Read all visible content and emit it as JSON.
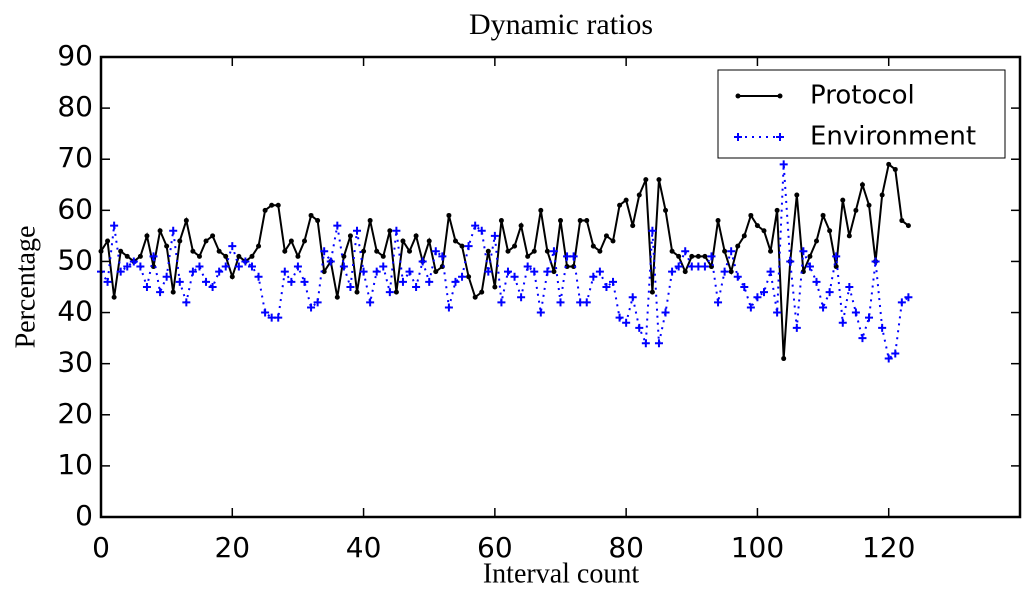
{
  "chart_data": {
    "type": "line",
    "title": "Dynamic ratios",
    "xlabel": "Interval count",
    "ylabel": "Percentage",
    "x": [
      0,
      1,
      2,
      3,
      4,
      5,
      6,
      7,
      8,
      9,
      10,
      11,
      12,
      13,
      14,
      15,
      16,
      17,
      18,
      19,
      20,
      21,
      22,
      23,
      24,
      25,
      26,
      27,
      28,
      29,
      30,
      31,
      32,
      33,
      34,
      35,
      36,
      37,
      38,
      39,
      40,
      41,
      42,
      43,
      44,
      45,
      46,
      47,
      48,
      49,
      50,
      51,
      52,
      53,
      54,
      55,
      56,
      57,
      58,
      59,
      60,
      61,
      62,
      63,
      64,
      65,
      66,
      67,
      68,
      69,
      70,
      71,
      72,
      73,
      74,
      75,
      76,
      77,
      78,
      79,
      80,
      81,
      82,
      83,
      84,
      85,
      86,
      87,
      88,
      89,
      90,
      91,
      92,
      93,
      94,
      95,
      96,
      97,
      98,
      99,
      100,
      101,
      102,
      103,
      104,
      105,
      106,
      107,
      108,
      109,
      110,
      111,
      112,
      113,
      114,
      115,
      116,
      117,
      118,
      119,
      120,
      121,
      122,
      123
    ],
    "series": [
      {
        "name": "Protocol",
        "color": "#000000",
        "style": "solid",
        "marker": "dot",
        "values": [
          52,
          54,
          43,
          52,
          51,
          50,
          51,
          55,
          49,
          56,
          53,
          44,
          54,
          58,
          52,
          51,
          54,
          55,
          52,
          51,
          47,
          51,
          50,
          51,
          53,
          60,
          61,
          61,
          52,
          54,
          51,
          54,
          59,
          58,
          48,
          50,
          43,
          51,
          55,
          44,
          52,
          58,
          52,
          51,
          56,
          44,
          54,
          52,
          55,
          50,
          54,
          48,
          49,
          59,
          54,
          53,
          47,
          43,
          44,
          52,
          45,
          58,
          52,
          53,
          57,
          51,
          52,
          60,
          52,
          48,
          58,
          49,
          49,
          58,
          58,
          53,
          52,
          55,
          54,
          61,
          62,
          57,
          63,
          66,
          44,
          66,
          60,
          52,
          51,
          48,
          51,
          51,
          51,
          49,
          58,
          52,
          48,
          53,
          55,
          59,
          57,
          56,
          52,
          60,
          31,
          50,
          63,
          48,
          51,
          54,
          59,
          56,
          49,
          62,
          55,
          60,
          65,
          61,
          50,
          63,
          69,
          68,
          58,
          57
        ]
      },
      {
        "name": "Environment",
        "color": "#0000ff",
        "style": "dotted",
        "marker": "plus",
        "values": [
          48,
          46,
          57,
          48,
          49,
          50,
          49,
          45,
          51,
          44,
          47,
          56,
          46,
          42,
          48,
          49,
          46,
          45,
          48,
          49,
          53,
          49,
          50,
          49,
          47,
          40,
          39,
          39,
          48,
          46,
          49,
          46,
          41,
          42,
          52,
          50,
          57,
          49,
          45,
          56,
          48,
          42,
          48,
          49,
          44,
          56,
          46,
          48,
          45,
          50,
          46,
          52,
          51,
          41,
          46,
          47,
          53,
          57,
          56,
          48,
          55,
          42,
          48,
          47,
          43,
          49,
          48,
          40,
          48,
          52,
          42,
          51,
          51,
          42,
          42,
          47,
          48,
          45,
          46,
          39,
          38,
          43,
          37,
          34,
          56,
          34,
          40,
          48,
          49,
          52,
          49,
          49,
          49,
          51,
          42,
          48,
          52,
          47,
          45,
          41,
          43,
          44,
          48,
          40,
          69,
          50,
          37,
          52,
          49,
          46,
          41,
          44,
          51,
          38,
          45,
          40,
          35,
          39,
          50,
          37,
          31,
          32,
          42,
          43
        ]
      }
    ],
    "xlim": [
      0,
      140
    ],
    "xticks": [
      0,
      20,
      40,
      60,
      80,
      100,
      120
    ],
    "ylim": [
      0,
      90
    ],
    "yticks": [
      0,
      10,
      20,
      30,
      40,
      50,
      60,
      70,
      80,
      90
    ],
    "grid": false,
    "legend": "upper right"
  }
}
